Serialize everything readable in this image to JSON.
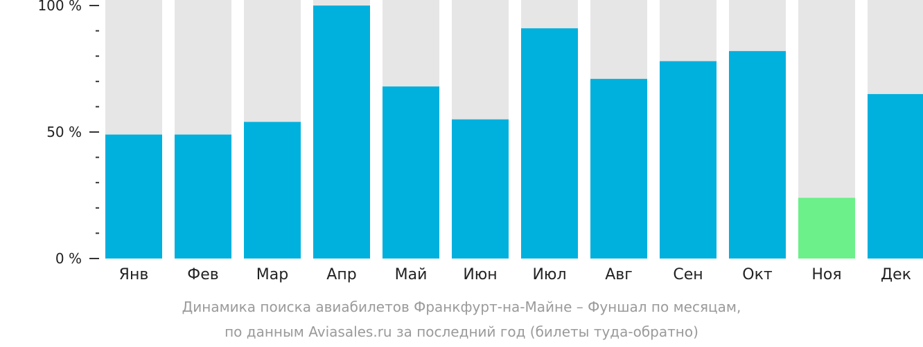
{
  "chart_data": {
    "type": "bar",
    "categories": [
      "Янв",
      "Фев",
      "Мар",
      "Апр",
      "Май",
      "Июн",
      "Июл",
      "Авг",
      "Сен",
      "Окт",
      "Ноя",
      "Дек"
    ],
    "values": [
      49,
      49,
      54,
      100,
      68,
      55,
      91,
      71,
      78,
      82,
      24,
      65
    ],
    "highlight_index": 10,
    "ylim": [
      0,
      100
    ],
    "yticks": [
      {
        "value": 0,
        "label": "0 %"
      },
      {
        "value": 50,
        "label": "50 %"
      },
      {
        "value": 100,
        "label": "100 %"
      }
    ],
    "minor_tick_step": 10,
    "grid": false,
    "caption": [
      "Динамика поиска авиабилетов Франкфурт-на-Майне – Фуншал по месяцам,",
      "по данным Aviasales.ru за последний год (билеты туда-обратно)"
    ],
    "colors": {
      "bar": "#00b0dd",
      "highlight": "#6cf08a",
      "background_bar": "#e6e6e6",
      "axis": "#333333"
    }
  }
}
